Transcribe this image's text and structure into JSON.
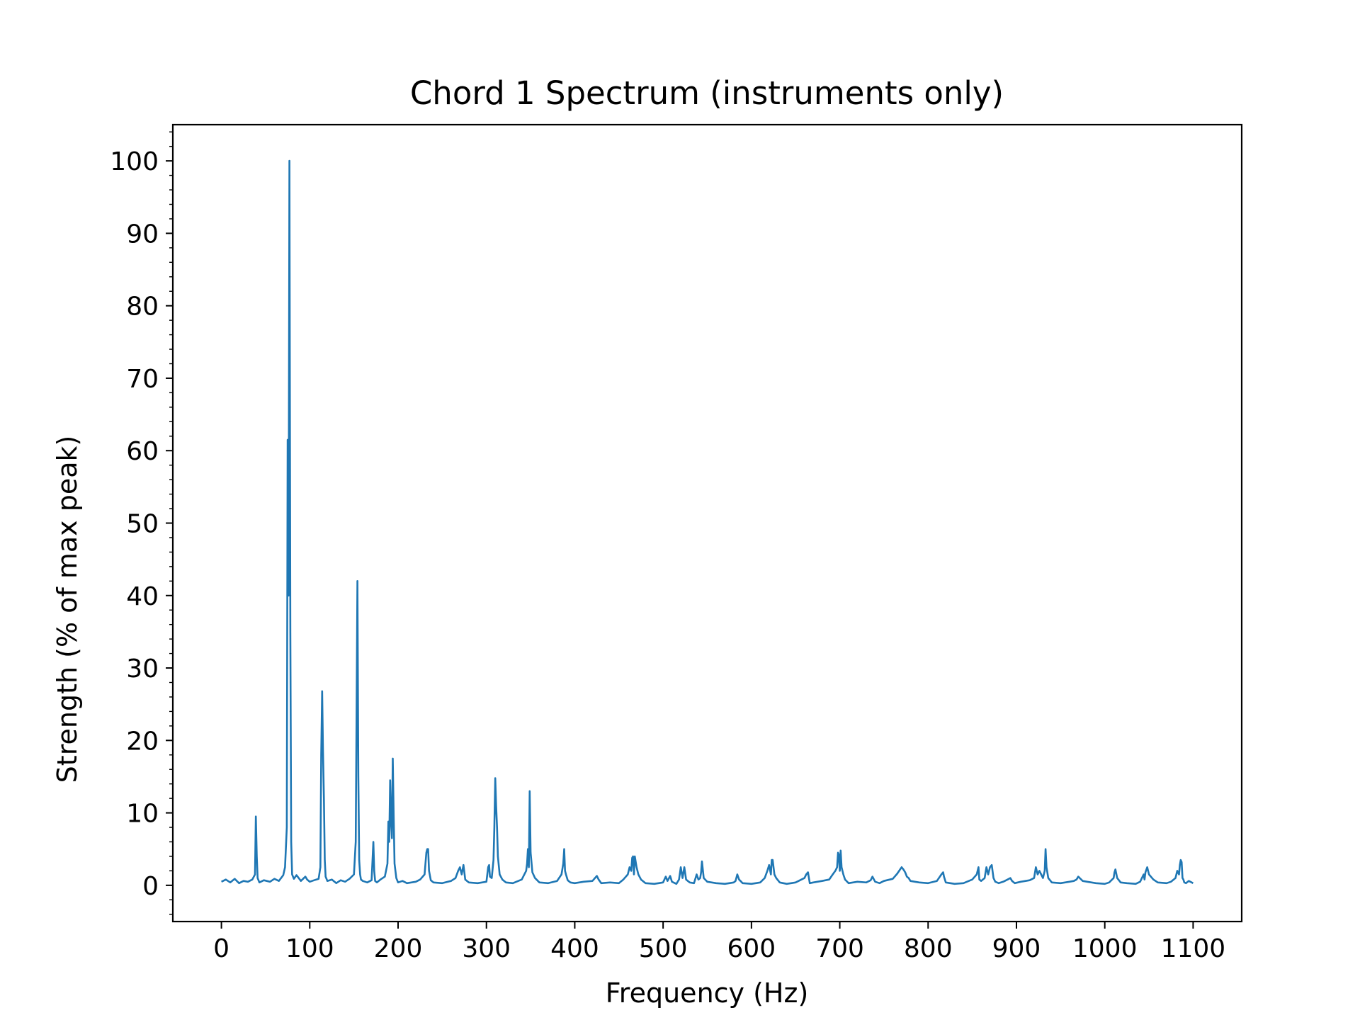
{
  "chart_data": {
    "type": "line",
    "title": "Chord 1 Spectrum (instruments only)",
    "xlabel": "Frequency (Hz)",
    "ylabel": "Strength (% of max peak)",
    "xlim": [
      -55,
      1155
    ],
    "ylim": [
      -5,
      105
    ],
    "x_ticks": [
      0,
      100,
      200,
      300,
      400,
      500,
      600,
      700,
      800,
      900,
      1000,
      1100
    ],
    "y_ticks": [
      0,
      10,
      20,
      30,
      40,
      50,
      60,
      70,
      80,
      90,
      100
    ],
    "x_tick_labels": [
      "0",
      "100",
      "200",
      "300",
      "400",
      "500",
      "600",
      "700",
      "800",
      "900",
      "1000",
      "1100"
    ],
    "y_tick_labels": [
      "0",
      "10",
      "20",
      "30",
      "40",
      "50",
      "60",
      "70",
      "80",
      "90",
      "100"
    ],
    "grid": false,
    "line_color": "#1f77b4",
    "series": [
      {
        "x": [
          0,
          5,
          10,
          15,
          20,
          25,
          30,
          35,
          38,
          39,
          40,
          41,
          43,
          48,
          55,
          60,
          65,
          70,
          72,
          74,
          75,
          76,
          77,
          78,
          79,
          80,
          82,
          85,
          90,
          95,
          97,
          100,
          105,
          110,
          112,
          113,
          114,
          115,
          116,
          117,
          118,
          120,
          125,
          130,
          135,
          140,
          145,
          150,
          152,
          154,
          155,
          156,
          157,
          158,
          160,
          165,
          170,
          172,
          173,
          174,
          176,
          180,
          185,
          188,
          189,
          190,
          191,
          192,
          193,
          194,
          195,
          196,
          198,
          200,
          205,
          210,
          220,
          225,
          230,
          232,
          233,
          234,
          235,
          237,
          240,
          250,
          260,
          265,
          268,
          270,
          272,
          274,
          276,
          280,
          290,
          300,
          302,
          303,
          304,
          306,
          308,
          309,
          310,
          311,
          312,
          313,
          315,
          318,
          322,
          330,
          340,
          345,
          346,
          347,
          348,
          349,
          350,
          352,
          355,
          360,
          370,
          380,
          385,
          387,
          388,
          389,
          390,
          392,
          395,
          400,
          410,
          420,
          425,
          427,
          430,
          440,
          450,
          455,
          460,
          462,
          464,
          465,
          466,
          467,
          468,
          470,
          472,
          475,
          480,
          490,
          500,
          503,
          505,
          508,
          510,
          515,
          518,
          520,
          522,
          524,
          526,
          530,
          535,
          538,
          540,
          542,
          543,
          544,
          546,
          550,
          560,
          570,
          580,
          582,
          584,
          586,
          590,
          600,
          610,
          615,
          618,
          620,
          622,
          623,
          624,
          626,
          628,
          632,
          640,
          650,
          660,
          662,
          664,
          666,
          670,
          680,
          688,
          692,
          695,
          697,
          698,
          699,
          700,
          701,
          702,
          704,
          706,
          710,
          720,
          730,
          735,
          737,
          740,
          745,
          750,
          760,
          765,
          770,
          772,
          774,
          776,
          778,
          780,
          785,
          790,
          800,
          810,
          815,
          817,
          818,
          820,
          825,
          830,
          840,
          850,
          855,
          857,
          858,
          860,
          864,
          866,
          868,
          870,
          872,
          874,
          876,
          880,
          885,
          890,
          893,
          895,
          898,
          905,
          915,
          920,
          922,
          924,
          926,
          928,
          930,
          932,
          933,
          934,
          936,
          940,
          950,
          960,
          965,
          968,
          970,
          975,
          980,
          990,
          1000,
          1005,
          1010,
          1011,
          1012,
          1014,
          1018,
          1025,
          1035,
          1040,
          1042,
          1044,
          1045,
          1046,
          1048,
          1050,
          1055,
          1060,
          1070,
          1075,
          1080,
          1082,
          1084,
          1085,
          1086,
          1087,
          1088,
          1089,
          1090,
          1092,
          1095,
          1100
        ],
        "y": [
          0.5,
          0.8,
          0.4,
          0.9,
          0.3,
          0.6,
          0.5,
          0.8,
          1.5,
          9.5,
          4.0,
          1.0,
          0.4,
          0.7,
          0.5,
          0.9,
          0.6,
          1.4,
          2.5,
          8.0,
          61.5,
          40.0,
          100.0,
          35.0,
          6.0,
          1.5,
          0.9,
          1.4,
          0.6,
          1.2,
          0.8,
          0.5,
          0.7,
          0.9,
          2.5,
          18.0,
          26.8,
          18.5,
          12.0,
          3.5,
          1.2,
          0.6,
          0.8,
          0.3,
          0.7,
          0.5,
          0.9,
          1.5,
          6.0,
          42.0,
          15.0,
          3.5,
          1.5,
          0.8,
          0.6,
          0.4,
          0.7,
          6.0,
          2.0,
          0.6,
          0.4,
          0.8,
          1.2,
          3.0,
          8.8,
          6.0,
          14.5,
          9.0,
          6.5,
          17.5,
          9.5,
          3.0,
          1.0,
          0.4,
          0.6,
          0.3,
          0.5,
          0.8,
          1.5,
          4.5,
          5.0,
          5.0,
          2.0,
          0.7,
          0.4,
          0.3,
          0.6,
          1.0,
          2.0,
          2.5,
          1.5,
          2.8,
          0.8,
          0.4,
          0.3,
          0.5,
          2.5,
          2.8,
          1.2,
          1.0,
          3.5,
          8.0,
          14.8,
          11.0,
          8.0,
          4.0,
          1.5,
          0.8,
          0.4,
          0.3,
          0.8,
          2.0,
          3.0,
          5.0,
          2.5,
          13.0,
          4.5,
          1.8,
          1.0,
          0.4,
          0.3,
          0.6,
          1.5,
          3.0,
          5.0,
          2.0,
          1.5,
          0.7,
          0.4,
          0.3,
          0.5,
          0.6,
          1.3,
          0.8,
          0.3,
          0.4,
          0.3,
          0.8,
          1.5,
          2.5,
          2.0,
          3.8,
          4.0,
          1.5,
          4.0,
          2.5,
          1.5,
          0.8,
          0.3,
          0.2,
          0.4,
          1.2,
          0.6,
          1.3,
          0.5,
          0.2,
          0.8,
          2.5,
          1.0,
          2.5,
          0.8,
          0.4,
          0.3,
          1.5,
          0.8,
          1.0,
          1.8,
          3.3,
          1.0,
          0.5,
          0.3,
          0.2,
          0.4,
          0.6,
          1.5,
          0.8,
          0.3,
          0.2,
          0.4,
          1.0,
          2.0,
          2.8,
          1.5,
          3.5,
          3.5,
          1.5,
          1.0,
          0.4,
          0.2,
          0.4,
          1.0,
          1.5,
          1.8,
          0.3,
          0.4,
          0.6,
          0.8,
          1.5,
          2.0,
          2.5,
          4.5,
          4.2,
          2.0,
          4.8,
          2.5,
          1.5,
          0.8,
          0.3,
          0.5,
          0.4,
          0.7,
          1.2,
          0.5,
          0.3,
          0.6,
          0.9,
          1.6,
          2.5,
          2.2,
          1.8,
          1.2,
          1.0,
          0.6,
          0.5,
          0.4,
          0.3,
          0.6,
          1.5,
          1.8,
          1.2,
          0.4,
          0.3,
          0.2,
          0.3,
          0.8,
          1.5,
          2.5,
          0.8,
          0.6,
          1.0,
          2.5,
          1.5,
          2.5,
          2.8,
          1.0,
          0.5,
          0.3,
          0.5,
          0.8,
          1.0,
          0.6,
          0.3,
          0.5,
          0.7,
          1.0,
          2.5,
          1.5,
          2.0,
          1.5,
          1.0,
          2.0,
          5.0,
          2.5,
          1.0,
          0.4,
          0.3,
          0.5,
          0.6,
          0.8,
          1.2,
          0.6,
          0.5,
          0.3,
          0.2,
          0.4,
          1.0,
          1.8,
          2.2,
          1.0,
          0.4,
          0.3,
          0.2,
          0.5,
          1.0,
          1.5,
          0.8,
          1.8,
          2.5,
          1.5,
          0.8,
          0.4,
          0.3,
          0.5,
          1.0,
          2.0,
          1.5,
          2.8,
          3.5,
          3.2,
          1.0,
          0.8,
          0.4,
          0.3,
          0.6,
          0.3
        ]
      }
    ]
  }
}
